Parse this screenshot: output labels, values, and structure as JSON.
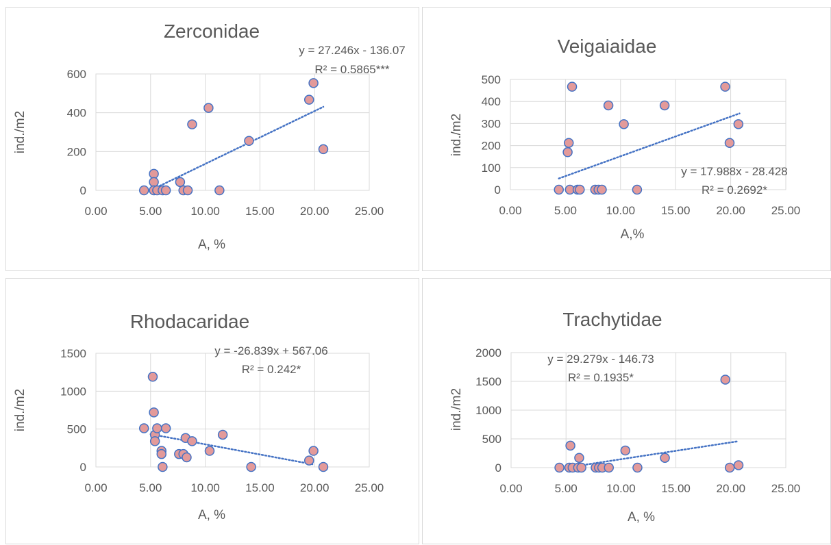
{
  "chart_data": [
    {
      "type": "scatter",
      "title": "Zerconidae",
      "xlabel": "A, %",
      "ylabel": "ind./m2",
      "xlim": [
        0,
        25
      ],
      "ylim": [
        0,
        600
      ],
      "xticks": [
        "0.00",
        "5.00",
        "10.00",
        "15.00",
        "20.00",
        "25.00"
      ],
      "yticks": [
        "0",
        "200",
        "400",
        "600"
      ],
      "grid": true,
      "marker_color": "#e39a9a",
      "marker_edge": "#4472c4",
      "trendline": {
        "slope": 27.246,
        "intercept": -136.07,
        "x_range": [
          5.0,
          20.8
        ],
        "color": "#4472c4"
      },
      "equation": "y = 27.246x - 136.07",
      "r2": "R² = 0.5865***",
      "points": [
        {
          "x": 4.4,
          "y": 0
        },
        {
          "x": 5.3,
          "y": 85
        },
        {
          "x": 5.3,
          "y": 43
        },
        {
          "x": 5.3,
          "y": 0
        },
        {
          "x": 5.6,
          "y": 0
        },
        {
          "x": 6.1,
          "y": 0
        },
        {
          "x": 6.4,
          "y": 0
        },
        {
          "x": 7.7,
          "y": 43
        },
        {
          "x": 8.0,
          "y": 0
        },
        {
          "x": 8.4,
          "y": 0
        },
        {
          "x": 8.8,
          "y": 340
        },
        {
          "x": 10.3,
          "y": 425
        },
        {
          "x": 11.3,
          "y": 0
        },
        {
          "x": 14.0,
          "y": 255
        },
        {
          "x": 19.5,
          "y": 467
        },
        {
          "x": 19.9,
          "y": 553
        },
        {
          "x": 20.8,
          "y": 212
        }
      ]
    },
    {
      "type": "scatter",
      "title": "Veigaiaidae",
      "xlabel": "A,%",
      "ylabel": "ind./m2",
      "xlim": [
        0,
        25
      ],
      "ylim": [
        0,
        500
      ],
      "xticks": [
        "0.00",
        "5.00",
        "10.00",
        "15.00",
        "20.00",
        "25.00"
      ],
      "yticks": [
        "0",
        "100",
        "200",
        "300",
        "400",
        "500"
      ],
      "grid": true,
      "marker_color": "#e39a9a",
      "marker_edge": "#4472c4",
      "trendline": {
        "slope": 17.988,
        "intercept": -28.428,
        "x_range": [
          4.4,
          20.8
        ],
        "color": "#4472c4"
      },
      "equation": "y = 17.988x - 28.428",
      "r2": "R² = 0.2692*",
      "points": [
        {
          "x": 4.4,
          "y": 0
        },
        {
          "x": 5.2,
          "y": 170
        },
        {
          "x": 5.3,
          "y": 212
        },
        {
          "x": 5.4,
          "y": 0
        },
        {
          "x": 5.6,
          "y": 467
        },
        {
          "x": 6.1,
          "y": 0
        },
        {
          "x": 6.3,
          "y": 0
        },
        {
          "x": 7.7,
          "y": 0
        },
        {
          "x": 8.0,
          "y": 0
        },
        {
          "x": 8.3,
          "y": 0
        },
        {
          "x": 8.9,
          "y": 382
        },
        {
          "x": 10.3,
          "y": 297
        },
        {
          "x": 11.5,
          "y": 0
        },
        {
          "x": 14.0,
          "y": 382
        },
        {
          "x": 19.5,
          "y": 467
        },
        {
          "x": 19.9,
          "y": 212
        },
        {
          "x": 20.7,
          "y": 297
        }
      ]
    },
    {
      "type": "scatter",
      "title": "Rhodacaridae",
      "xlabel": "A, %",
      "ylabel": "ind./m2",
      "xlim": [
        0,
        25
      ],
      "ylim": [
        0,
        1500
      ],
      "xticks": [
        "0.00",
        "5.00",
        "10.00",
        "15.00",
        "20.00",
        "25.00"
      ],
      "yticks": [
        "0",
        "500",
        "1000",
        "1500"
      ],
      "grid": true,
      "marker_color": "#e39a9a",
      "marker_edge": "#4472c4",
      "trendline": {
        "slope": -26.839,
        "intercept": 567.06,
        "x_range": [
          5.0,
          19.8
        ],
        "color": "#4472c4"
      },
      "equation": "y = -26.839x + 567.06",
      "r2": "R² = 0.242*",
      "points": [
        {
          "x": 4.4,
          "y": 510
        },
        {
          "x": 5.2,
          "y": 1190
        },
        {
          "x": 5.3,
          "y": 720
        },
        {
          "x": 5.4,
          "y": 425
        },
        {
          "x": 5.4,
          "y": 340
        },
        {
          "x": 5.6,
          "y": 510
        },
        {
          "x": 6.0,
          "y": 212
        },
        {
          "x": 6.0,
          "y": 170
        },
        {
          "x": 6.1,
          "y": 0
        },
        {
          "x": 6.4,
          "y": 510
        },
        {
          "x": 7.6,
          "y": 170
        },
        {
          "x": 8.0,
          "y": 170
        },
        {
          "x": 8.2,
          "y": 382
        },
        {
          "x": 8.3,
          "y": 127
        },
        {
          "x": 8.8,
          "y": 340
        },
        {
          "x": 10.4,
          "y": 212
        },
        {
          "x": 11.6,
          "y": 425
        },
        {
          "x": 14.2,
          "y": 0
        },
        {
          "x": 19.5,
          "y": 85
        },
        {
          "x": 19.9,
          "y": 212
        },
        {
          "x": 20.8,
          "y": 0
        }
      ]
    },
    {
      "type": "scatter",
      "title": "Trachytidae",
      "xlabel": "A, %",
      "ylabel": "ind./m2",
      "xlim": [
        0,
        25
      ],
      "ylim": [
        0,
        2000
      ],
      "xticks": [
        "0.00",
        "5.00",
        "10.00",
        "15.00",
        "20.00",
        "25.00"
      ],
      "yticks": [
        "0",
        "500",
        "1000",
        "1500",
        "2000"
      ],
      "grid": true,
      "marker_color": "#e39a9a",
      "marker_edge": "#4472c4",
      "trendline": {
        "slope": 29.279,
        "intercept": -146.73,
        "x_range": [
          5.0,
          20.6
        ],
        "color": "#4472c4"
      },
      "equation": "y = 29.279x - 146.73",
      "r2": "R² = 0.1935*",
      "points": [
        {
          "x": 4.4,
          "y": 0
        },
        {
          "x": 5.3,
          "y": 0
        },
        {
          "x": 5.4,
          "y": 382
        },
        {
          "x": 5.6,
          "y": 0
        },
        {
          "x": 6.1,
          "y": 0
        },
        {
          "x": 6.2,
          "y": 170
        },
        {
          "x": 6.4,
          "y": 0
        },
        {
          "x": 7.7,
          "y": 0
        },
        {
          "x": 8.0,
          "y": 0
        },
        {
          "x": 8.3,
          "y": 0
        },
        {
          "x": 8.9,
          "y": 0
        },
        {
          "x": 10.4,
          "y": 297
        },
        {
          "x": 11.5,
          "y": 0
        },
        {
          "x": 14.0,
          "y": 170
        },
        {
          "x": 19.5,
          "y": 1530
        },
        {
          "x": 19.9,
          "y": 0
        },
        {
          "x": 20.7,
          "y": 42
        }
      ]
    }
  ]
}
